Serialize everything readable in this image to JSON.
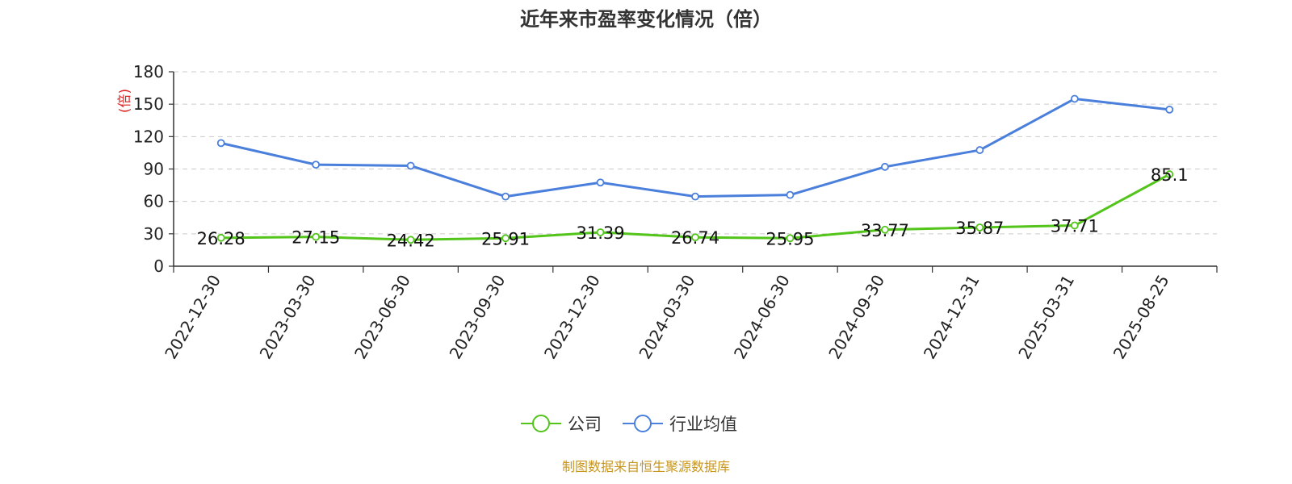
{
  "chart_data": {
    "type": "line",
    "title": "近年来市盈率变化情况（倍）",
    "ylabel": "(倍)",
    "xlabel": "",
    "categories": [
      "2022-12-30",
      "2023-03-30",
      "2023-06-30",
      "2023-09-30",
      "2023-12-30",
      "2024-03-30",
      "2024-06-30",
      "2024-09-30",
      "2024-12-31",
      "2025-03-31",
      "2025-08-25"
    ],
    "y_ticks": [
      "0",
      "30",
      "60",
      "90",
      "120",
      "150",
      "180"
    ],
    "ylim": [
      0,
      180
    ],
    "grid": true,
    "legend_position": "bottom-center",
    "series": [
      {
        "name": "公司",
        "color": "#52c41a",
        "values": [
          26.28,
          27.15,
          24.42,
          25.91,
          31.39,
          26.74,
          25.95,
          33.77,
          35.87,
          37.71,
          85.1
        ],
        "labels": [
          "26.28",
          "27.15",
          "24.42",
          "25.91",
          "31.39",
          "26.74",
          "25.95",
          "33.77",
          "35.87",
          "37.71",
          "85.1"
        ]
      },
      {
        "name": "行业均值",
        "color": "#4a7fdc",
        "values": [
          114,
          94,
          93,
          64.5,
          77.5,
          64.5,
          66,
          92,
          107.5,
          155,
          145
        ]
      }
    ],
    "source": "制图数据来自恒生聚源数据库"
  }
}
